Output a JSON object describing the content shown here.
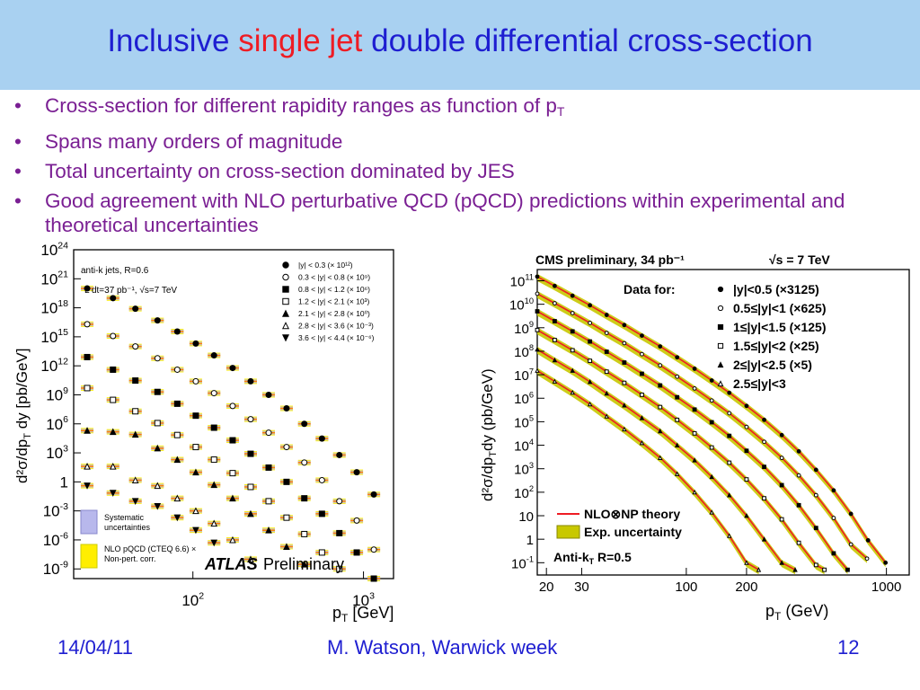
{
  "slide": {
    "title_pre": "Inclusive ",
    "title_hl": "single jet",
    "title_post": " double differential cross-section",
    "bullets": [
      {
        "text": "Cross-section for different rapidity ranges as function of p",
        "sub": "T"
      },
      {
        "text": "Spans many orders of magnitude",
        "sub": ""
      },
      {
        "text": "Total uncertainty on cross-section dominated by JES",
        "sub": ""
      },
      {
        "text": "Good agreement with NLO perturbative QCD (pQCD) predictions within experimental and theoretical uncertainties",
        "sub": ""
      }
    ],
    "footer": {
      "date": "14/04/11",
      "author": "M. Watson, Warwick week",
      "page": "12"
    },
    "colors": {
      "title": "#1e1ed1",
      "highlight": "#ee1c24",
      "bullet": "#7a1f93",
      "title_bar": "#a9d1f1"
    }
  },
  "chart_data": [
    {
      "type": "scatter",
      "panel": "left",
      "xscale": "log",
      "yscale": "log",
      "xlim": [
        20,
        1500
      ],
      "ylim": [
        1e-10,
        1e+24
      ],
      "xticks": [
        {
          "v": 100,
          "label": "10",
          "exp": "2"
        },
        {
          "v": 1000,
          "label": "10",
          "exp": "3"
        }
      ],
      "yticks": [
        {
          "v": 1e+24,
          "label": "10",
          "exp": "24"
        },
        {
          "v": 1e+21,
          "label": "10",
          "exp": "21"
        },
        {
          "v": 1e+18,
          "label": "10",
          "exp": "18"
        },
        {
          "v": 1000000000000000.0,
          "label": "10",
          "exp": "15"
        },
        {
          "v": 1000000000000.0,
          "label": "10",
          "exp": "12"
        },
        {
          "v": 1000000000.0,
          "label": "10",
          "exp": "9"
        },
        {
          "v": 1000000.0,
          "label": "10",
          "exp": "6"
        },
        {
          "v": 1000.0,
          "label": "10",
          "exp": "3"
        },
        {
          "v": 1,
          "label": "1",
          "exp": ""
        },
        {
          "v": 0.001,
          "label": "10",
          "exp": "-3"
        },
        {
          "v": 1e-06,
          "label": "10",
          "exp": "-6"
        },
        {
          "v": 1e-09,
          "label": "10",
          "exp": "-9"
        }
      ],
      "ylabel": "d²σ/dp_T dy [pb/GeV]",
      "xlabel": "p_T [GeV]",
      "header_lines": [
        "anti-k  jets, R=0.6",
        "L dt=37 pb⁻¹, √s=7 TeV"
      ],
      "legend": [
        {
          "label": "|y| < 0.3 (× 10¹²)",
          "marker": "filled-circle"
        },
        {
          "label": "0.3 < |y| < 0.8 (× 10⁹)",
          "marker": "open-circle"
        },
        {
          "label": "0.8 < |y| < 1.2 (× 10⁶)",
          "marker": "filled-square"
        },
        {
          "label": "1.2 < |y| < 2.1 (× 10³)",
          "marker": "open-square"
        },
        {
          "label": "2.1 < |y| < 2.8 (× 10⁰)",
          "marker": "filled-triangle"
        },
        {
          "label": "2.8 < |y| < 3.6 (× 10⁻³)",
          "marker": "open-triangle"
        },
        {
          "label": "3.6 < |y| < 4.4 (× 10⁻⁶)",
          "marker": "filled-triangle-down"
        }
      ],
      "band_legend": [
        {
          "label": "Systematic\nuncertainties",
          "color": "#b8b8ec"
        },
        {
          "label": "NLO pQCD (CTEQ 6.6) ×\nNon-pert. corr.",
          "color": "#ffee00"
        }
      ],
      "brand": "ATLAS",
      "brand_suffix": "Preliminary",
      "series": [
        {
          "x": [
            24,
            34,
            46,
            62,
            81,
            104,
            133,
            171,
            218,
            278,
            354,
            450,
            571,
            722,
            913,
            1150
          ],
          "y": [
            1e+20,
            1e+19,
            8e+17,
            5e+16,
            3500000000000000.0,
            200000000000000.0,
            12000000000000.0,
            600000000000.0,
            25000000000.0,
            1000000000.0,
            40000000.0,
            1000000.0,
            30000.0,
            600.0,
            10.0,
            0.05
          ]
        },
        {
          "x": [
            24,
            34,
            46,
            62,
            81,
            104,
            133,
            171,
            218,
            278,
            354,
            450,
            571,
            722,
            913,
            1150
          ],
          "y": [
            2e+16,
            1200000000000000.0,
            100000000000000.0,
            6000000000000.0,
            400000000000.0,
            25000000000.0,
            1500000000.0,
            70000000.0,
            3000000.0,
            120000.0,
            4000.0,
            100.0,
            1.5,
            0.01,
            0.0001,
            1e-07
          ]
        },
        {
          "x": [
            24,
            34,
            46,
            62,
            81,
            104,
            133,
            171,
            218,
            278,
            354,
            450,
            571,
            722,
            913,
            1150
          ],
          "y": [
            8000000000000.0,
            400000000000.0,
            30000000000.0,
            2000000000.0,
            120000000.0,
            7000000.0,
            400000.0,
            20000.0,
            800.0,
            30,
            1,
            0.02,
            0.0005,
            5e-06,
            5e-08,
            1e-10
          ]
        },
        {
          "x": [
            24,
            34,
            46,
            62,
            81,
            104,
            133,
            171,
            218,
            278,
            354,
            450,
            571,
            722
          ],
          "y": [
            5000000000.0,
            300000000.0,
            20000000.0,
            1200000.0,
            70000.0,
            4000.0,
            200.0,
            8,
            0.3,
            0.01,
            0.0002,
            4e-06,
            5e-08,
            1e-09
          ]
        },
        {
          "x": [
            24,
            34,
            46,
            62,
            81,
            104,
            133,
            171,
            218,
            278,
            354,
            450
          ],
          "y": [
            200000.0,
            150000.0,
            80000.0,
            3000.0,
            200.0,
            10,
            0.5,
            0.02,
            0.0005,
            1e-05,
            2e-07,
            3e-09
          ]
        },
        {
          "x": [
            24,
            34,
            46,
            62,
            81,
            104,
            133,
            171,
            218
          ],
          "y": [
            40.0,
            40.0,
            1.5,
            0.4,
            0.02,
            0.001,
            5e-05,
            1e-06,
            1e-08
          ]
        },
        {
          "x": [
            24,
            34,
            46,
            62,
            81,
            104,
            133
          ],
          "y": [
            0.4,
            0.07,
            0.01,
            0.003,
            0.0002,
            1e-05,
            5e-07
          ]
        }
      ]
    },
    {
      "type": "line",
      "panel": "right",
      "xscale": "log",
      "yscale": "log",
      "xlim": [
        18,
        1300
      ],
      "ylim": [
        0.03,
        300000000000.0
      ],
      "xticks": [
        {
          "v": 20,
          "label": "20"
        },
        {
          "v": 30,
          "label": "30"
        },
        {
          "v": 100,
          "label": "100"
        },
        {
          "v": 200,
          "label": "200"
        },
        {
          "v": 1000,
          "label": "1000"
        }
      ],
      "yticks": [
        {
          "v": 100000000000.0,
          "label": "10",
          "exp": "11"
        },
        {
          "v": 10000000000.0,
          "label": "10",
          "exp": "10"
        },
        {
          "v": 1000000000.0,
          "label": "10",
          "exp": "9"
        },
        {
          "v": 100000000.0,
          "label": "10",
          "exp": "8"
        },
        {
          "v": 10000000.0,
          "label": "10",
          "exp": "7"
        },
        {
          "v": 1000000.0,
          "label": "10",
          "exp": "6"
        },
        {
          "v": 100000.0,
          "label": "10",
          "exp": "5"
        },
        {
          "v": 10000.0,
          "label": "10",
          "exp": "4"
        },
        {
          "v": 1000.0,
          "label": "10",
          "exp": "3"
        },
        {
          "v": 100.0,
          "label": "10",
          "exp": "2"
        },
        {
          "v": 10,
          "label": "10",
          "exp": ""
        },
        {
          "v": 1,
          "label": "1",
          "exp": ""
        },
        {
          "v": 0.1,
          "label": "10",
          "exp": "-1"
        }
      ],
      "ylabel": "d²σ/dp_T dy (pb/GeV)",
      "xlabel": "p_T (GeV)",
      "title_left": "CMS preliminary, 34 pb⁻¹",
      "title_right": "√s = 7 TeV",
      "legend_title": "Data for:",
      "legend": [
        {
          "label": "|y|<0.5 (×3125)",
          "marker": "filled-circle"
        },
        {
          "label": "0.5≤|y|<1 (×625)",
          "marker": "open-circle"
        },
        {
          "label": "1≤|y|<1.5 (×125)",
          "marker": "filled-square"
        },
        {
          "label": "1.5≤|y|<2 (×25)",
          "marker": "open-square"
        },
        {
          "label": "2≤|y|<2.5 (×5)",
          "marker": "filled-triangle"
        },
        {
          "label": "2.5≤|y|<3",
          "marker": "open-triangle"
        }
      ],
      "band_legend": [
        {
          "label": "NLO⊗NP theory",
          "color": "#ee1c24"
        },
        {
          "label": "Exp. uncertainty",
          "color": "#c8c800"
        }
      ],
      "annotation": "Anti-k  R=0.5",
      "series": [
        {
          "x": [
            18,
            22,
            27,
            33,
            40,
            49,
            60,
            74,
            90,
            110,
            134,
            164,
            200,
            245,
            300,
            365,
            445,
            545,
            665,
            810,
            990
          ],
          "y": [
            150000000000.0,
            60000000000.0,
            23000000000.0,
            9000000000.0,
            3500000000.0,
            1300000000.0,
            460000000.0,
            160000000.0,
            55000000.0,
            18000000.0,
            5700000.0,
            1700000.0,
            470000.0,
            120000.0,
            27000.0,
            5500.0,
            900.0,
            120.0,
            12,
            0.9,
            0.1
          ]
        },
        {
          "x": [
            18,
            22,
            27,
            33,
            40,
            49,
            60,
            74,
            90,
            110,
            134,
            164,
            200,
            245,
            300,
            365,
            445,
            545,
            665,
            800
          ],
          "y": [
            28000000000.0,
            11000000000.0,
            4200000000.0,
            1600000000.0,
            600000000.0,
            220000000.0,
            75000000.0,
            25000000.0,
            8300000.0,
            2600000.0,
            800000.0,
            230000.0,
            60000.0,
            14000.0,
            2900.0,
            520.0,
            75,
            8,
            0.6,
            0.15
          ]
        },
        {
          "x": [
            18,
            22,
            27,
            33,
            40,
            49,
            60,
            74,
            90,
            110,
            134,
            164,
            200,
            245,
            300,
            365,
            445,
            545,
            640
          ],
          "y": [
            5000000000.0,
            1900000000.0,
            700000000.0,
            260000000.0,
            95000000.0,
            33000000.0,
            11000000.0,
            3500000.0,
            1100000.0,
            330000.0,
            95000.0,
            25000.0,
            5800.0,
            1200.0,
            200.0,
            28,
            3,
            0.25,
            0.05
          ]
        },
        {
          "x": [
            18,
            22,
            27,
            33,
            40,
            49,
            60,
            74,
            90,
            110,
            134,
            164,
            200,
            245,
            300,
            365,
            445,
            490
          ],
          "y": [
            800000000.0,
            300000000.0,
            110000000.0,
            39000000.0,
            13500000.0,
            4500000.0,
            1400000.0,
            420000.0,
            120000.0,
            32000.0,
            8000.0,
            1800.0,
            350.0,
            55,
            7,
            0.7,
            0.08,
            0.05
          ]
        },
        {
          "x": [
            18,
            22,
            27,
            33,
            40,
            49,
            60,
            74,
            90,
            110,
            134,
            164,
            200,
            245,
            300,
            350
          ],
          "y": [
            120000000.0,
            42000000.0,
            15000000.0,
            5000000.0,
            1600000.0,
            500000.0,
            145000.0,
            40000.0,
            10000.0,
            2300.0,
            450.0,
            75,
            10,
            1,
            0.1,
            0.05
          ]
        },
        {
          "x": [
            18,
            22,
            27,
            33,
            40,
            49,
            60,
            74,
            90,
            110,
            134,
            164,
            200,
            230
          ],
          "y": [
            15000000.0,
            5200000.0,
            1750000.0,
            560000.0,
            170000.0,
            48000.0,
            12500.0,
            2900.0,
            600.0,
            100.0,
            14,
            1.4,
            0.1,
            0.05
          ]
        }
      ]
    }
  ]
}
